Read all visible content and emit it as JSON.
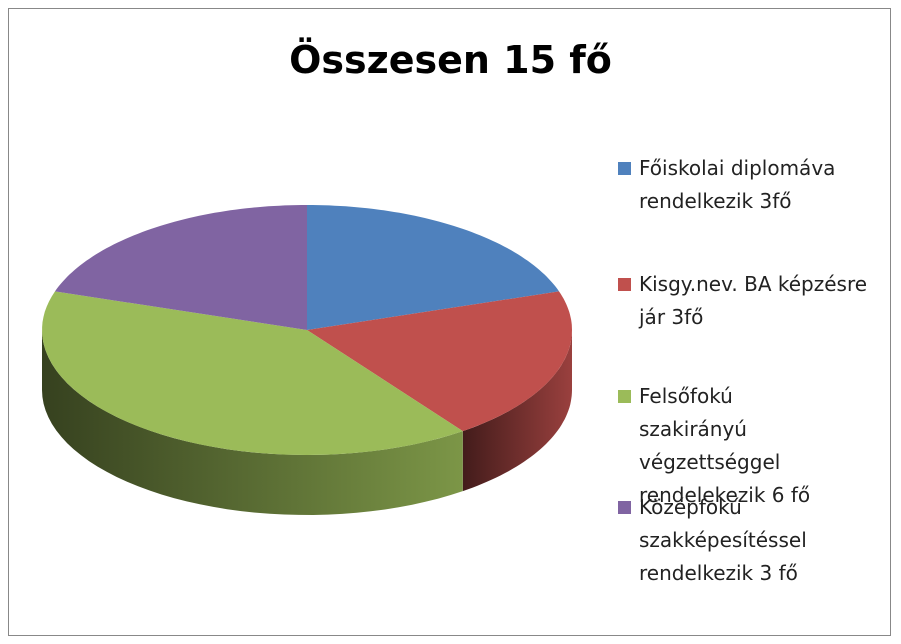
{
  "chart_data": {
    "type": "pie",
    "title": "Összesen 15 fő",
    "categories": [
      "Főiskolai diplomáva rendelkezik 3fő",
      "Kisgy.nev. BA képzésre jár 3fő",
      "Felsőfokú szakirányú végzettséggel rendelekezik 6 fő",
      "Középfokú szakképesítéssel rendelkezik 3 fő"
    ],
    "values": [
      3,
      3,
      6,
      3
    ],
    "colors": [
      "#4f81bd",
      "#c0504d",
      "#9bbb59",
      "#8064a2"
    ],
    "legend": "right"
  }
}
